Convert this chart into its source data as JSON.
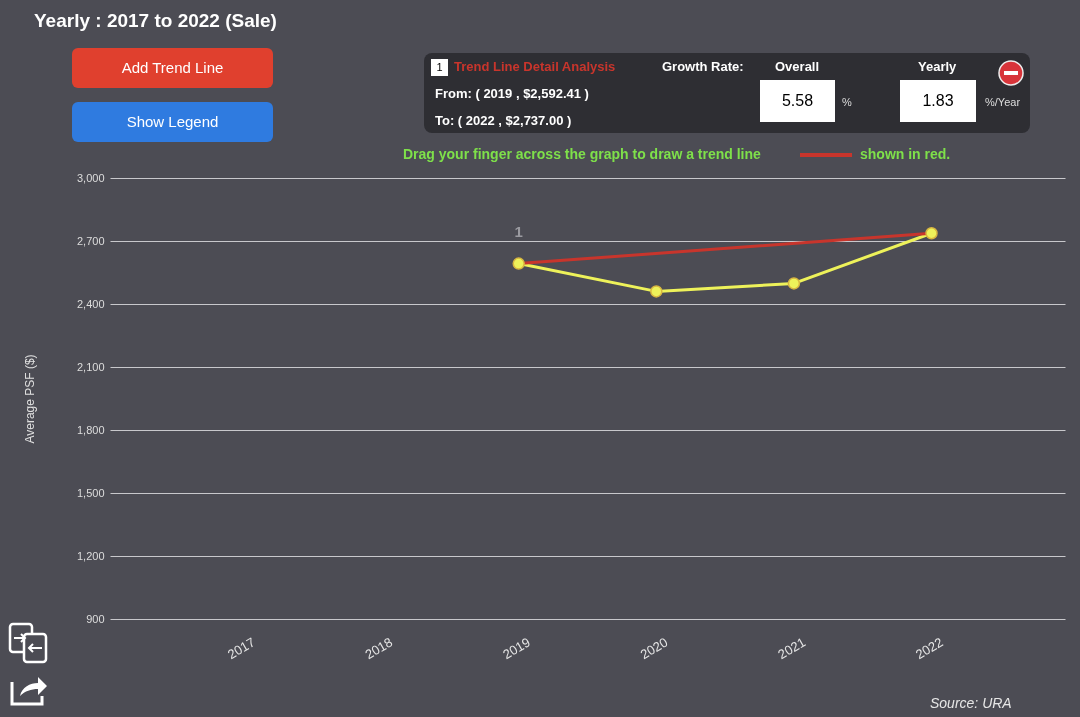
{
  "chart_data": {
    "type": "line",
    "title": "Yearly : 2017 to 2022 (Sale)",
    "ylabel": "Average PSF ($)",
    "categories": [
      "2017",
      "2018",
      "2019",
      "2020",
      "2021",
      "2022"
    ],
    "series": [
      {
        "color": "#eef25a",
        "values": [
          null,
          null,
          2592.41,
          2460,
          2498,
          2737.0
        ],
        "marker": "circle"
      },
      {
        "type": "line",
        "color": "#c8352c",
        "values": [
          null,
          null,
          2592.41,
          null,
          null,
          2737.0
        ],
        "marker": "none"
      }
    ],
    "ylim": [
      900,
      3000
    ],
    "yticks": [
      900,
      {
        "value": 1200,
        "label": "1,200"
      },
      {
        "value": 1500,
        "label": "1,500"
      },
      {
        "value": 1800,
        "label": "1,800"
      },
      {
        "value": 2100,
        "label": "2,100"
      },
      {
        "value": 2400,
        "label": "2,400"
      },
      {
        "value": 2700,
        "label": "2,700"
      },
      {
        "value": 3000,
        "label": "3,000"
      }
    ],
    "grid": "y",
    "line_style": "solid",
    "annotations": [
      "Add Trend Line",
      "Show Legend",
      "1",
      "Trend Line Detail Analysis",
      "Growth Rate:",
      "Overall",
      "Yearly",
      "From: ( 2019 , $2,592.41 )",
      "To: ( 2022 , $2,737.00 )",
      "5.58",
      "%",
      "1.83",
      "%/Year",
      "Drag your finger across the graph to draw a trend line",
      "shown in red.",
      "Source: URA",
      {
        "text": "1",
        "x": "2019",
        "y": 2592.41
      }
    ]
  }
}
